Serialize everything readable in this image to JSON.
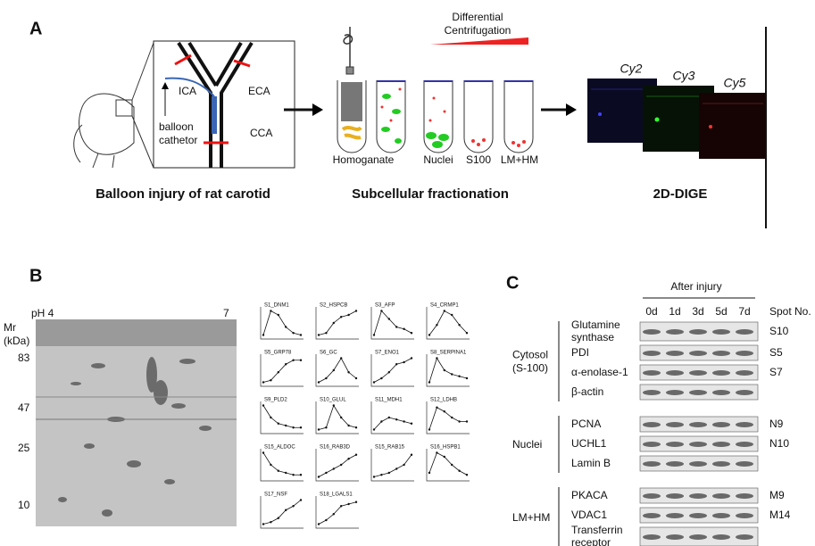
{
  "panel_a": {
    "label": "A",
    "catheter_label": [
      "balloon",
      "cathetor"
    ],
    "vessels": [
      "ICA",
      "ECA",
      "CCA"
    ],
    "centrifugation": [
      "Differential",
      "Centrifugation"
    ],
    "fractions": [
      "Homoganate",
      "Nuclei",
      "S100",
      "LM+HM"
    ],
    "dyes": [
      "Cy2",
      "Cy3",
      "Cy5"
    ],
    "captions": [
      "Balloon injury of rat carotid",
      "Subcellular fractionation",
      "2D-DIGE"
    ]
  },
  "panel_b": {
    "label": "B",
    "ph_left": "pH 4",
    "ph_right": "7",
    "mr_label": [
      "Mr",
      "(kDa)"
    ],
    "mr_ticks": [
      "83",
      "47",
      "25",
      "10"
    ],
    "plots": [
      {
        "title": "S1_DNM1",
        "values": [
          1.0,
          2.2,
          2.0,
          1.4,
          1.1,
          1.0
        ]
      },
      {
        "title": "S2_HSPCB",
        "values": [
          1.0,
          1.1,
          1.6,
          1.9,
          2.0,
          2.2
        ]
      },
      {
        "title": "S3_AFP",
        "values": [
          1.0,
          2.2,
          1.8,
          1.4,
          1.3,
          1.1
        ]
      },
      {
        "title": "S4_CRMP1",
        "values": [
          1.0,
          1.5,
          2.2,
          2.0,
          1.5,
          1.1
        ]
      },
      {
        "title": "S5_GRP78",
        "values": [
          1.0,
          1.1,
          1.5,
          1.9,
          2.1,
          2.1
        ]
      },
      {
        "title": "S6_GC",
        "values": [
          1.0,
          1.2,
          1.6,
          2.2,
          1.5,
          1.2
        ]
      },
      {
        "title": "S7_ENO1",
        "values": [
          1.0,
          1.2,
          1.5,
          1.9,
          2.0,
          2.2
        ]
      },
      {
        "title": "S8_SERPINA1",
        "values": [
          1.0,
          2.2,
          1.6,
          1.4,
          1.3,
          1.2
        ]
      },
      {
        "title": "S9_PLD2",
        "values": [
          2.2,
          1.6,
          1.3,
          1.2,
          1.1,
          1.1
        ]
      },
      {
        "title": "S10_GLUL",
        "values": [
          1.0,
          1.1,
          2.2,
          1.6,
          1.2,
          1.1
        ]
      },
      {
        "title": "S11_MDH1",
        "values": [
          1.0,
          1.4,
          1.6,
          1.5,
          1.4,
          1.3
        ]
      },
      {
        "title": "S12_LDHB",
        "values": [
          1.0,
          2.1,
          1.9,
          1.6,
          1.4,
          1.4
        ]
      },
      {
        "title": "S15_ALDOC",
        "values": [
          2.2,
          1.6,
          1.3,
          1.2,
          1.1,
          1.1
        ]
      },
      {
        "title": "S16_RAB3D",
        "values": [
          1.0,
          1.2,
          1.4,
          1.6,
          1.9,
          2.1
        ]
      },
      {
        "title": "S15_RAB15",
        "values": [
          1.0,
          1.1,
          1.2,
          1.4,
          1.6,
          2.1
        ]
      },
      {
        "title": "S16_HSPB1",
        "values": [
          1.2,
          2.2,
          2.0,
          1.6,
          1.3,
          1.1
        ]
      },
      {
        "title": "S17_NSF",
        "values": [
          1.0,
          1.1,
          1.3,
          1.7,
          1.9,
          2.2
        ]
      },
      {
        "title": "S18_LGALS1",
        "values": [
          1.0,
          1.2,
          1.5,
          1.9,
          2.0,
          2.1
        ]
      }
    ]
  },
  "panel_c": {
    "label": "C",
    "header": "After injury",
    "days": [
      "0d",
      "1d",
      "3d",
      "5d",
      "7d"
    ],
    "spot_header": "Spot No.",
    "groups": [
      {
        "name": [
          "Cytosol",
          "(S-100)"
        ],
        "rows": [
          {
            "protein": [
              "Glutamine",
              "synthase"
            ],
            "spot": "S10"
          },
          {
            "protein": [
              "PDI"
            ],
            "spot": "S5"
          },
          {
            "protein": [
              "α-enolase-1"
            ],
            "spot": "S7"
          },
          {
            "protein": [
              "β-actin"
            ]
          }
        ]
      },
      {
        "name": [
          "Nuclei"
        ],
        "rows": [
          {
            "protein": [
              "PCNA"
            ],
            "spot": "N9"
          },
          {
            "protein": [
              "UCHL1"
            ],
            "spot": "N10"
          },
          {
            "protein": [
              "Lamin B"
            ]
          }
        ]
      },
      {
        "name": [
          "LM+HM"
        ],
        "rows": [
          {
            "protein": [
              "PKACA"
            ],
            "spot": "M9"
          },
          {
            "protein": [
              "VDAC1"
            ],
            "spot": "M14"
          },
          {
            "protein": [
              "Transferrin",
              "receptor"
            ]
          }
        ]
      }
    ]
  }
}
